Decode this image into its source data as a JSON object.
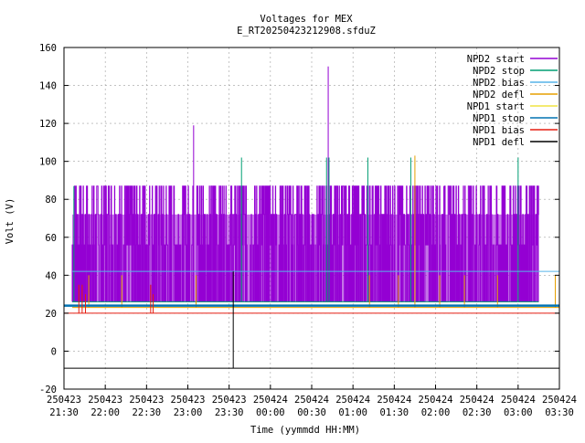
{
  "chart_data": {
    "type": "line",
    "title": "Voltages for MEX",
    "subtitle": "E_RT20250423212908.sfduZ",
    "xlabel": "Time (yymmdd HH:MM)",
    "ylabel": "Volt (V)",
    "ylim": [
      -20,
      160
    ],
    "yticks": [
      -20,
      0,
      20,
      40,
      60,
      80,
      100,
      120,
      140,
      160
    ],
    "xlim_hours": [
      21.5,
      27.5
    ],
    "xticks": [
      {
        "t": 21.5,
        "date": "250423",
        "time": "21:30"
      },
      {
        "t": 22.0,
        "date": "250423",
        "time": "22:00"
      },
      {
        "t": 22.5,
        "date": "250423",
        "time": "22:30"
      },
      {
        "t": 23.0,
        "date": "250423",
        "time": "23:00"
      },
      {
        "t": 23.5,
        "date": "250423",
        "time": "23:30"
      },
      {
        "t": 24.0,
        "date": "250424",
        "time": "00:00"
      },
      {
        "t": 24.5,
        "date": "250424",
        "time": "00:30"
      },
      {
        "t": 25.0,
        "date": "250424",
        "time": "01:00"
      },
      {
        "t": 25.5,
        "date": "250424",
        "time": "01:30"
      },
      {
        "t": 26.0,
        "date": "250424",
        "time": "02:00"
      },
      {
        "t": 26.5,
        "date": "250424",
        "time": "02:30"
      },
      {
        "t": 27.0,
        "date": "250424",
        "time": "03:00"
      },
      {
        "t": 27.5,
        "date": "250424",
        "time": "03:30"
      }
    ],
    "grid": true,
    "legend_position": "top-right",
    "series": [
      {
        "name": "NPD2 start",
        "color": "#9400d3",
        "band": {
          "t0": 21.6,
          "t1": 27.25,
          "low": 26,
          "mid": 56,
          "high": 72,
          "top": 87
        },
        "spikes": [
          {
            "t": 21.63,
            "v": 87
          },
          {
            "t": 23.07,
            "v": 119
          },
          {
            "t": 24.7,
            "v": 150
          },
          {
            "t": 26.1,
            "v": 87
          },
          {
            "t": 27.1,
            "v": 87
          }
        ]
      },
      {
        "name": "NPD2 stop",
        "color": "#009e73",
        "base": 26,
        "t0": 21.6,
        "t1": 27.25,
        "spikes": [
          {
            "t": 21.62,
            "v": 87
          },
          {
            "t": 23.65,
            "v": 102
          },
          {
            "t": 24.68,
            "v": 102
          },
          {
            "t": 24.71,
            "v": 102
          },
          {
            "t": 25.18,
            "v": 102
          },
          {
            "t": 25.7,
            "v": 102
          },
          {
            "t": 27.0,
            "v": 102
          }
        ]
      },
      {
        "name": "NPD2 bias",
        "color": "#56b4e9",
        "const": 42,
        "t0": 21.6,
        "t1": 27.5
      },
      {
        "name": "NPD2 defl",
        "color": "#e69f00",
        "base": 23,
        "t0": 21.6,
        "t1": 27.5,
        "spikes": [
          {
            "t": 21.8,
            "v": 40
          },
          {
            "t": 22.2,
            "v": 40
          },
          {
            "t": 23.1,
            "v": 40
          },
          {
            "t": 25.2,
            "v": 40
          },
          {
            "t": 25.55,
            "v": 40
          },
          {
            "t": 25.75,
            "v": 103
          },
          {
            "t": 26.05,
            "v": 40
          },
          {
            "t": 26.35,
            "v": 40
          },
          {
            "t": 26.75,
            "v": 40
          },
          {
            "t": 27.45,
            "v": 40
          }
        ]
      },
      {
        "name": "NPD1 start",
        "color": "#f0e442",
        "const": 24,
        "t0": 21.6,
        "t1": 27.5
      },
      {
        "name": "NPD1 stop",
        "color": "#0072b2",
        "const": 24,
        "t0": 21.5,
        "t1": 27.5
      },
      {
        "name": "NPD1 bias",
        "color": "#e51e10",
        "base": 20,
        "t0": 21.5,
        "t1": 27.5,
        "spikes": [
          {
            "t": 21.68,
            "v": 35
          },
          {
            "t": 21.72,
            "v": 35
          },
          {
            "t": 21.76,
            "v": 30
          },
          {
            "t": 22.55,
            "v": 35
          },
          {
            "t": 22.58,
            "v": 30
          }
        ]
      },
      {
        "name": "NPD1 defl",
        "color": "#000000",
        "base": -9,
        "t0": 21.5,
        "t1": 27.5,
        "spikes": [
          {
            "t": 23.55,
            "v": 42
          }
        ]
      }
    ]
  }
}
